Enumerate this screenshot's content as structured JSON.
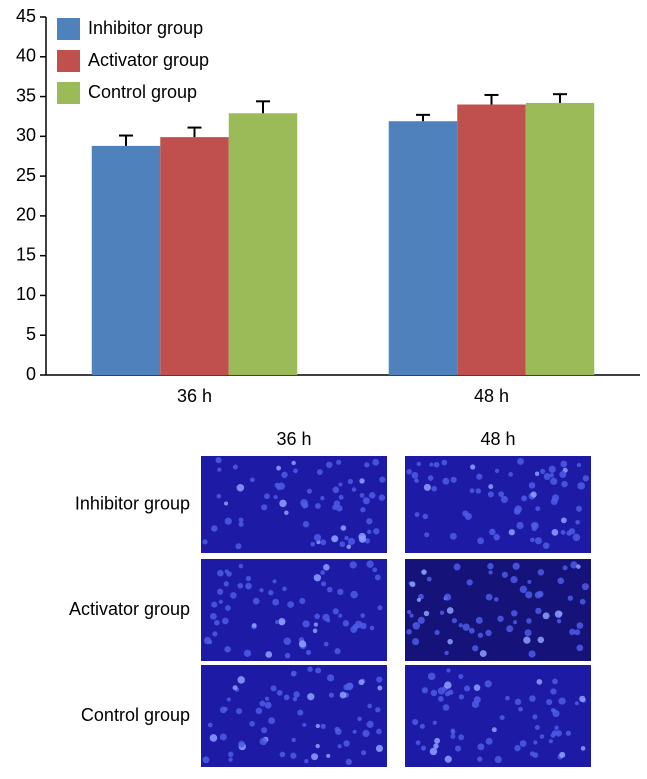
{
  "chart_data": {
    "type": "bar",
    "categories": [
      "36 h",
      "48 h"
    ],
    "series": [
      {
        "name": "Inhibitor group",
        "color": "#4f81bd",
        "values": [
          28.8,
          31.9
        ],
        "errors": [
          1.3,
          0.8
        ]
      },
      {
        "name": "Activator group",
        "color": "#c0504d",
        "values": [
          29.9,
          34.0
        ],
        "errors": [
          1.2,
          1.2
        ]
      },
      {
        "name": "Control group",
        "color": "#9bbb59",
        "values": [
          32.9,
          34.2
        ],
        "errors": [
          1.5,
          1.1
        ]
      }
    ],
    "ylim": [
      0,
      45
    ],
    "yticks": [
      0,
      5,
      10,
      15,
      20,
      25,
      30,
      35,
      40,
      45
    ],
    "grid": false,
    "legend": "top-left"
  },
  "microscopy": {
    "columns": [
      "36 h",
      "48 h"
    ],
    "rows": [
      "Inhibitor group",
      "Activator group",
      "Control group"
    ]
  }
}
